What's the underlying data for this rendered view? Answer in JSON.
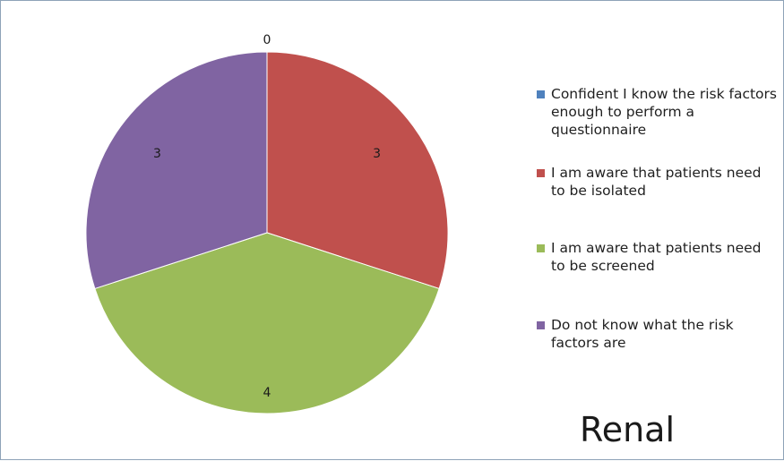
{
  "chart_data": {
    "type": "pie",
    "title": "",
    "categories": [
      "Confident I know the risk factors enough to perform a questionnaire",
      "I am aware that patients need to be isolated",
      "I am aware that patients need to be screened",
      "Do not know what the risk factors are"
    ],
    "values": [
      0,
      3,
      4,
      3
    ],
    "data_labels": [
      "0",
      "3",
      "4",
      "3"
    ],
    "colors": [
      "#4f81bd",
      "#c0504d",
      "#9bbb59",
      "#8064a2"
    ],
    "legend_placement": "right"
  },
  "caption": "Renal"
}
